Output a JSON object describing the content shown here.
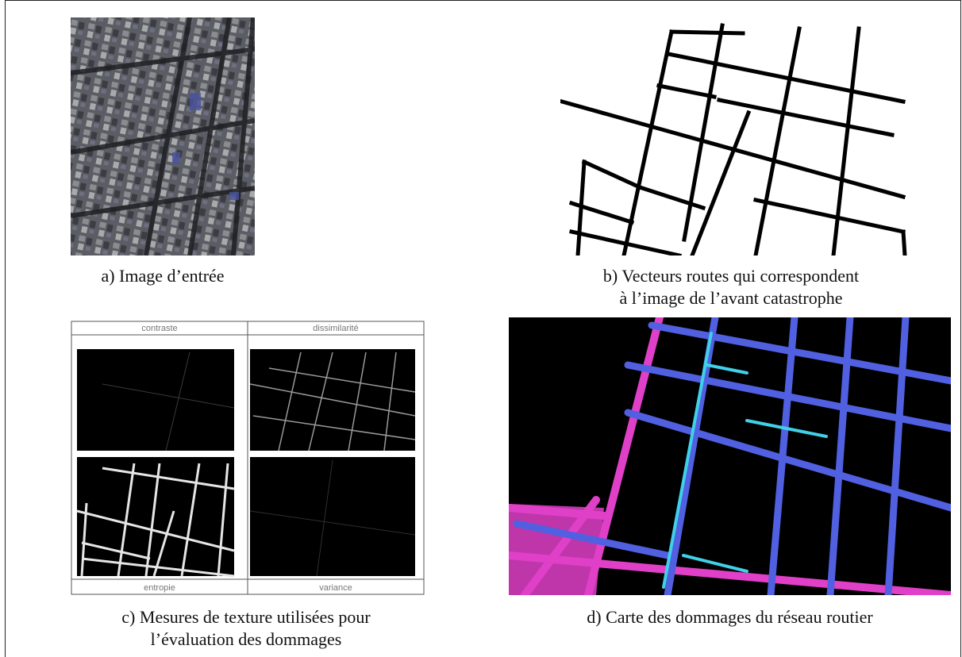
{
  "figure": {
    "panels": [
      {
        "id": "a",
        "caption": "a) Image d’entrée"
      },
      {
        "id": "b",
        "caption_line1": "b) Vecteurs routes qui correspondent",
        "caption_line2": "à l’image de l’avant catastrophe"
      },
      {
        "id": "c",
        "caption_line1": "c) Mesures de texture utilisées pour",
        "caption_line2": "l’évaluation des dommages",
        "texture_labels": {
          "top_left": "contraste",
          "top_right": "dissimilarité",
          "bottom_left": "entropie",
          "bottom_right": "variance"
        }
      },
      {
        "id": "d",
        "caption": "d) Carte des dommages du réseau routier"
      }
    ]
  },
  "colors": {
    "road_vector": "#000000",
    "damage_magenta": "#e040c8",
    "damage_cyan": "#40d0e8",
    "damage_blue": "#5060e0"
  }
}
